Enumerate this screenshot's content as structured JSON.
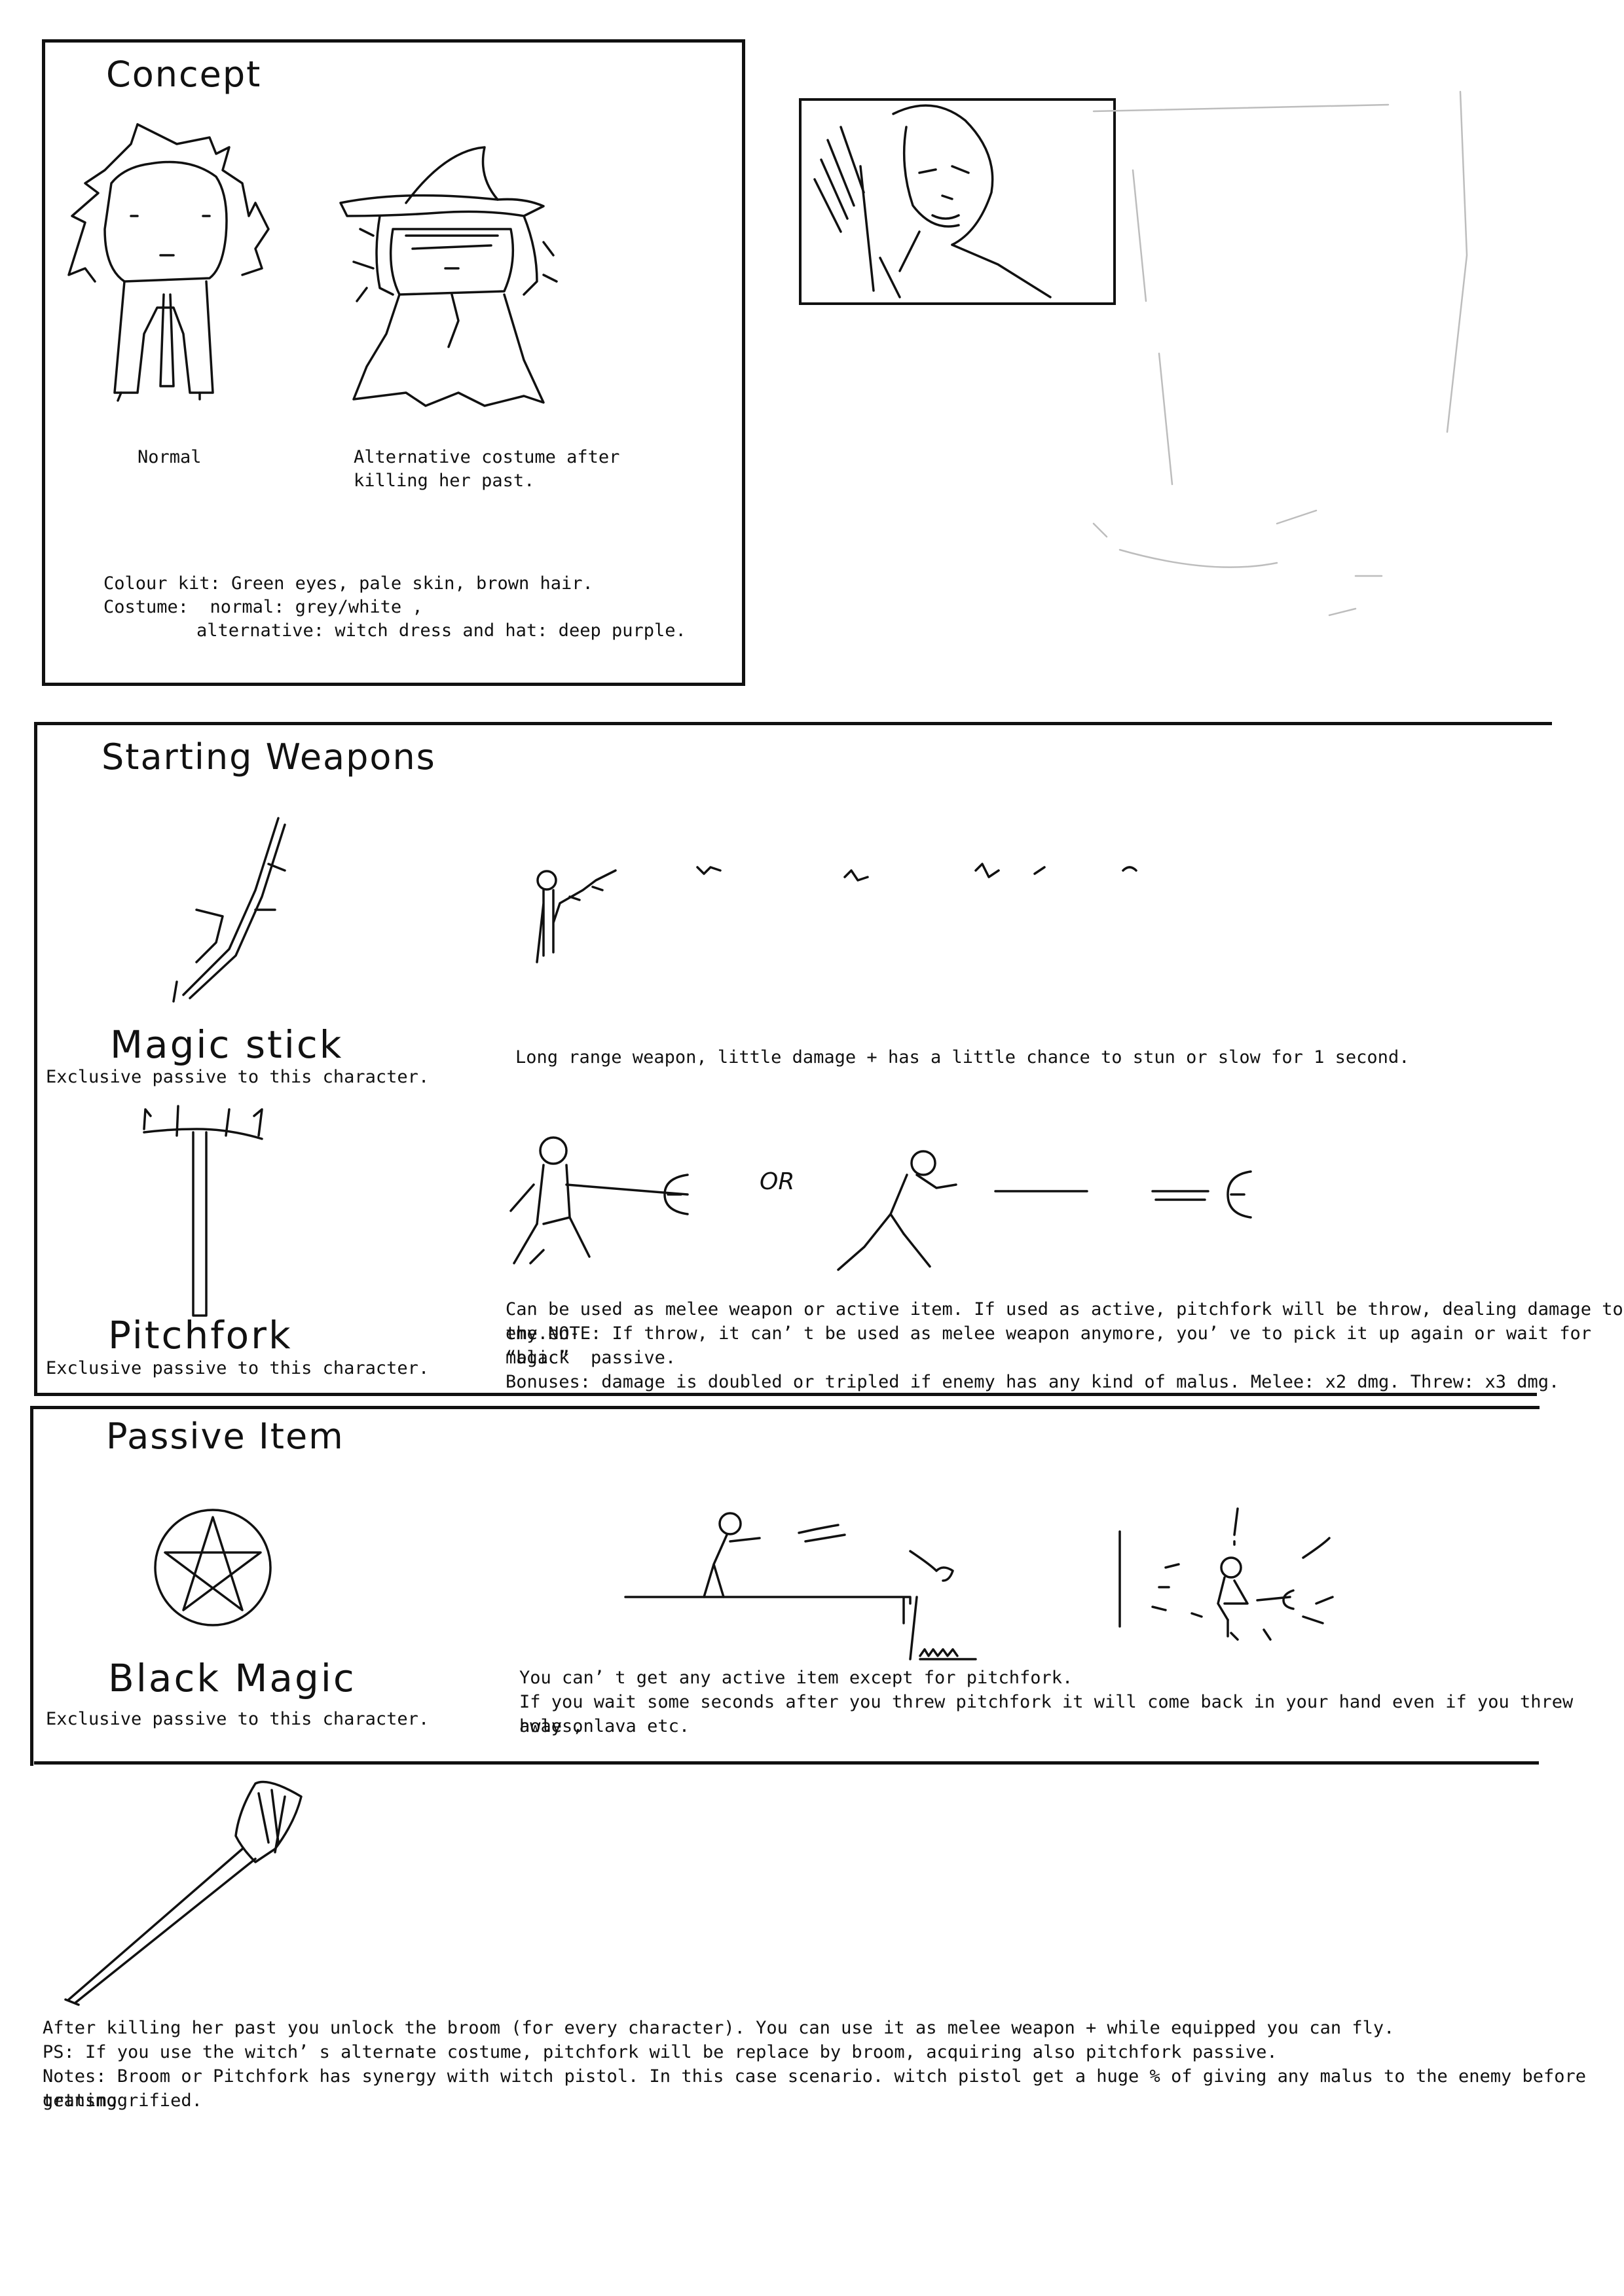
{
  "concept": {
    "title": "Concept",
    "normal_label": "Normal",
    "alt_label_line1": "Alternative costume after",
    "alt_label_line2": "killing her past.",
    "colour_kit": "Colour kit: Green eyes, pale skin, brown hair.",
    "costume_line1": "Costume:  normal: grey/white ,",
    "costume_line2": "alternative: witch dress and hat: deep purple."
  },
  "starting_weapons": {
    "title": "Starting Weapons",
    "magic_stick": {
      "name": "Magic stick",
      "passive": "Exclusive passive to this character.",
      "description": "Long range weapon, little damage + has a little chance to stun or slow for 1 second."
    },
    "pitchfork": {
      "name": "Pitchfork",
      "passive": "Exclusive passive to this character.",
      "or_label": "OR",
      "description_line1": "Can be used as melee weapon or active item. If used as active, pitchfork will be throw, dealing damage to the en-",
      "description_line2": "emy.NOTE: If throw, it can’ t be used as melee weapon anymore, you’ ve to pick it up again or wait for “black",
      "description_line3": "magic”  passive.",
      "bonuses": "Bonuses: damage is doubled or tripled if enemy has any kind of malus. Melee: x2 dmg. Threw: x3 dmg."
    }
  },
  "passive_item": {
    "title": "Passive Item",
    "black_magic": {
      "name": "Black Magic",
      "passive": "Exclusive passive to this character."
    },
    "description_line1": "You can’ t get any active item except for pitchfork.",
    "description_line2": "If you wait some seconds after you threw pitchfork it will come back in your hand even if you threw away on",
    "description_line3": "holes, lava etc."
  },
  "broom": {
    "line1": "After killing her past you unlock the broom (for every character). You can use it as melee weapon + while equipped you can fly.",
    "line2": "PS: If you use the witch’ s alternate costume, pitchfork will be replace by broom, acquiring also pitchfork passive.",
    "line3": "Notes: Broom or Pitchfork has synergy with witch pistol. In this case scenario. witch pistol get a huge % of giving any malus to the enemy before getting",
    "line4": "transmogrified."
  }
}
